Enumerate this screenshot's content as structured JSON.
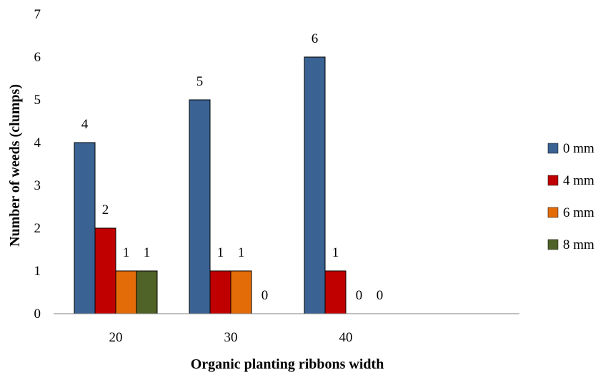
{
  "chart_data": {
    "type": "bar",
    "categories": [
      "20",
      "30",
      "40"
    ],
    "series": [
      {
        "name": "0 mm",
        "values": [
          4,
          5,
          6
        ],
        "color": "#3A6394"
      },
      {
        "name": "4 mm",
        "values": [
          2,
          1,
          1
        ],
        "color": "#C00000"
      },
      {
        "name": "6 mm",
        "values": [
          1,
          1,
          0
        ],
        "color": "#E36C09"
      },
      {
        "name": "8 mm",
        "values": [
          1,
          0,
          0
        ],
        "color": "#4F6228"
      }
    ],
    "data_labels": [
      [
        "4",
        "5",
        "6"
      ],
      [
        "2",
        "1",
        "1"
      ],
      [
        "1",
        "1",
        "0"
      ],
      [
        "1",
        "0",
        "0"
      ]
    ],
    "title": "",
    "xlabel": "Organic planting ribbons width",
    "ylabel": "Number of weeds (clumps)",
    "ylim": [
      0,
      7
    ],
    "yticks": [
      "0",
      "1",
      "2",
      "3",
      "4",
      "5",
      "6",
      "7"
    ],
    "grid": false,
    "legend_position": "right"
  }
}
